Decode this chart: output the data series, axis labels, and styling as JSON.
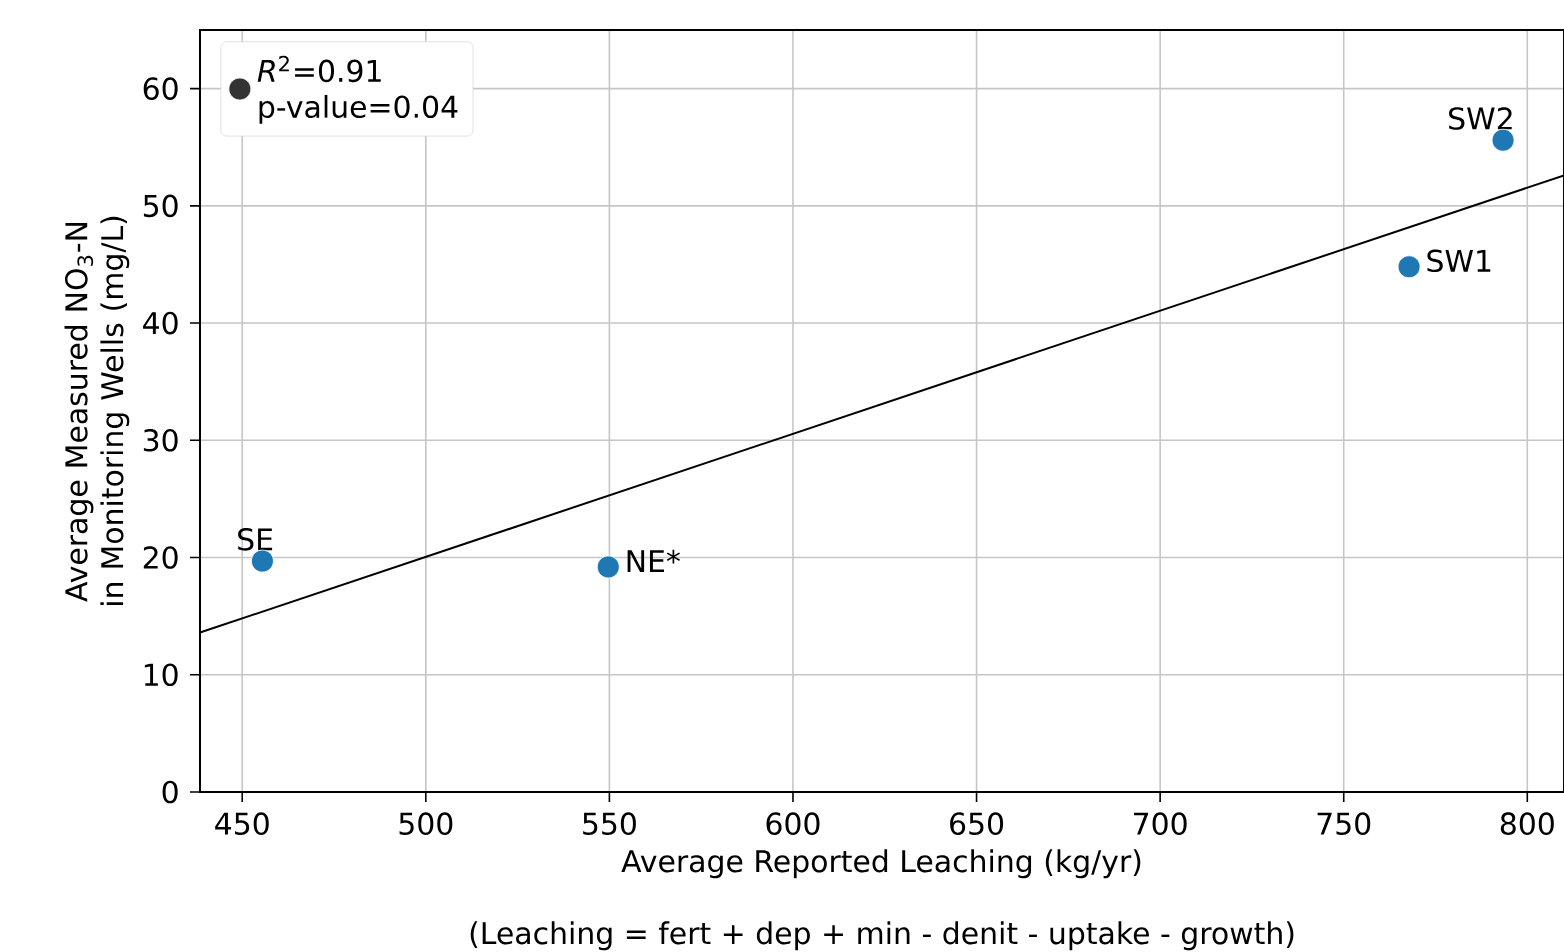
{
  "chart_data": {
    "type": "scatter",
    "xlabel": "Average Reported Leaching (kg/yr)",
    "ylabel": "Average Measured NO$_{3}$-N in Monitoring Wells (mg/L)",
    "xlim": [
      438.5,
      810
    ],
    "ylim": [
      0,
      65
    ],
    "xticks": [
      450,
      500,
      550,
      600,
      650,
      700,
      750,
      800
    ],
    "yticks": [
      0,
      10,
      20,
      30,
      40,
      50,
      60
    ],
    "grid": true,
    "legend": "top left",
    "series": [
      {
        "type": "scatter",
        "marker": "circle",
        "color": "#1f77b4",
        "x": [
          455.5,
          549.7,
          767.8,
          793.4
        ],
        "values": [
          19.7,
          19.2,
          44.8,
          55.6
        ]
      },
      {
        "type": "line",
        "marker": "none",
        "color": "#000000",
        "x": [
          438.5,
          810
        ],
        "values": [
          13.6,
          52.6
        ]
      },
      {
        "name": "*R*$^{2}$=0.91",
        "marker": "circle",
        "color": "#333333"
      }
    ],
    "annotations": [
      "(Leaching = fert + dep + min - denit - uptake - growth)",
      "p-value=0.04",
      {
        "text": "SE",
        "x": 455.5,
        "y": 19.7
      },
      {
        "text": "NE*",
        "x": 549.7,
        "y": 19.2
      },
      {
        "text": "SW1",
        "x": 767.8,
        "y": 44.8
      },
      {
        "text": "SW2",
        "x": 793.4,
        "y": 55.6
      }
    ]
  }
}
